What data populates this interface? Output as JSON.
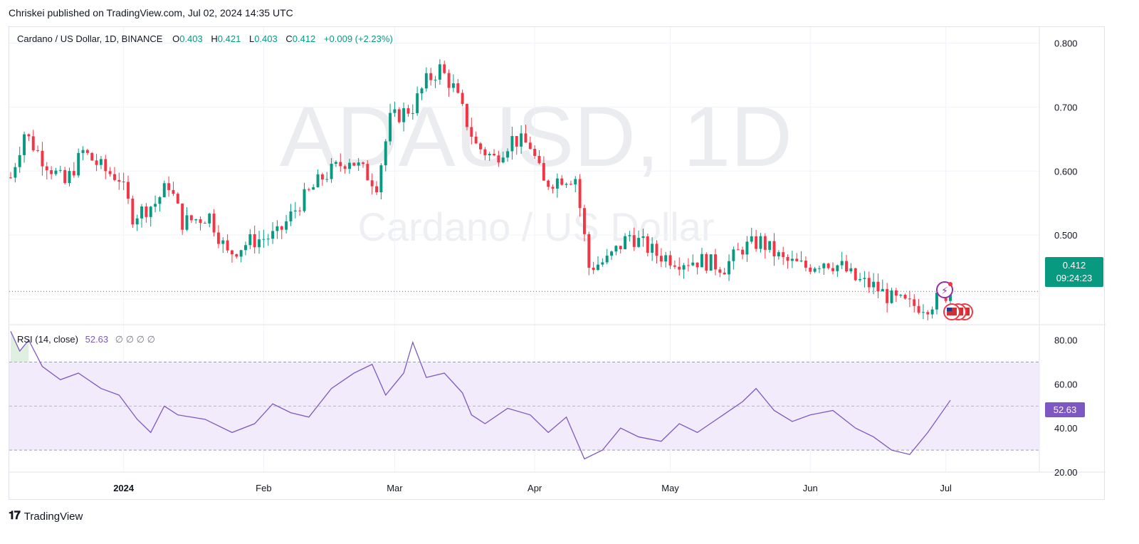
{
  "header": {
    "published": "Chriskei published on TradingView.com, Jul 02, 2024 14:35 UTC"
  },
  "legend": {
    "symbol": "Cardano / US Dollar, 1D, BINANCE",
    "open_label": "O",
    "open": "0.403",
    "high_label": "H",
    "high": "0.421",
    "low_label": "L",
    "low": "0.403",
    "close_label": "C",
    "close": "0.412",
    "change": "+0.009 (+2.23%)"
  },
  "watermark": {
    "ticker": "ADAUSD, 1D",
    "name": "Cardano / US Dollar"
  },
  "price_tag": {
    "price": "0.412",
    "countdown": "09:24:23"
  },
  "rsi": {
    "label": "RSI (14, close)",
    "value": "52.63",
    "placeholders": "∅ ∅ ∅ ∅"
  },
  "brand": {
    "name": "TradingView"
  },
  "colors": {
    "up": "#089981",
    "down": "#f23645",
    "rsi": "#7e57c2",
    "band": "#f1ebfb"
  },
  "chart_data": [
    {
      "type": "candlestick",
      "title": "Cardano / US Dollar, 1D, BINANCE",
      "y_ticks": [
        "0.800",
        "0.700",
        "0.600",
        "0.500"
      ],
      "ylim": [
        0.36,
        0.825
      ],
      "x_ticks": [
        "2024",
        "Feb",
        "Mar",
        "Apr",
        "May",
        "Jun",
        "Jul"
      ],
      "x_range": [
        "2023-12-07",
        "2024-07-02"
      ],
      "close_path": [
        [
          "2023-12-07",
          0.59
        ],
        [
          "2023-12-10",
          0.66
        ],
        [
          "2023-12-14",
          0.62
        ],
        [
          "2023-12-19",
          0.58
        ],
        [
          "2023-12-23",
          0.63
        ],
        [
          "2023-12-28",
          0.6
        ],
        [
          "2023-12-31",
          0.59
        ],
        [
          "2024-01-03",
          0.53
        ],
        [
          "2024-01-08",
          0.55
        ],
        [
          "2024-01-11",
          0.58
        ],
        [
          "2024-01-14",
          0.52
        ],
        [
          "2024-01-20",
          0.53
        ],
        [
          "2024-01-24",
          0.47
        ],
        [
          "2024-01-29",
          0.49
        ],
        [
          "2024-02-04",
          0.5
        ],
        [
          "2024-02-09",
          0.55
        ],
        [
          "2024-02-14",
          0.59
        ],
        [
          "2024-02-20",
          0.62
        ],
        [
          "2024-02-26",
          0.58
        ],
        [
          "2024-02-29",
          0.68
        ],
        [
          "2024-03-05",
          0.7
        ],
        [
          "2024-03-08",
          0.74
        ],
        [
          "2024-03-11",
          0.76
        ],
        [
          "2024-03-14",
          0.73
        ],
        [
          "2024-03-19",
          0.64
        ],
        [
          "2024-03-23",
          0.62
        ],
        [
          "2024-03-27",
          0.65
        ],
        [
          "2024-03-31",
          0.64
        ],
        [
          "2024-04-03",
          0.58
        ],
        [
          "2024-04-07",
          0.59
        ],
        [
          "2024-04-10",
          0.59
        ],
        [
          "2024-04-13",
          0.45
        ],
        [
          "2024-04-17",
          0.46
        ],
        [
          "2024-04-22",
          0.5
        ],
        [
          "2024-04-28",
          0.47
        ],
        [
          "2024-05-03",
          0.46
        ],
        [
          "2024-05-08",
          0.46
        ],
        [
          "2024-05-13",
          0.45
        ],
        [
          "2024-05-17",
          0.48
        ],
        [
          "2024-05-21",
          0.49
        ],
        [
          "2024-05-26",
          0.46
        ],
        [
          "2024-05-31",
          0.45
        ],
        [
          "2024-06-04",
          0.46
        ],
        [
          "2024-06-08",
          0.45
        ],
        [
          "2024-06-11",
          0.43
        ],
        [
          "2024-06-15",
          0.42
        ],
        [
          "2024-06-19",
          0.4
        ],
        [
          "2024-06-23",
          0.39
        ],
        [
          "2024-06-27",
          0.39
        ],
        [
          "2024-07-02",
          0.412
        ]
      ],
      "last_price": 0.412
    },
    {
      "type": "line",
      "title": "RSI (14, close)",
      "y_ticks": [
        "80.00",
        "60.00",
        "40.00",
        "20.00"
      ],
      "ylim": [
        20,
        87
      ],
      "band": [
        30,
        70
      ],
      "midline": 50,
      "series": [
        {
          "values": [
            [
              "2023-12-07",
              84
            ],
            [
              "2023-12-09",
              75
            ],
            [
              "2023-12-11",
              80
            ],
            [
              "2023-12-14",
              68
            ],
            [
              "2023-12-18",
              62
            ],
            [
              "2023-12-22",
              65
            ],
            [
              "2023-12-27",
              58
            ],
            [
              "2023-12-31",
              55
            ],
            [
              "2024-01-04",
              44
            ],
            [
              "2024-01-07",
              38
            ],
            [
              "2024-01-10",
              50
            ],
            [
              "2024-01-13",
              46
            ],
            [
              "2024-01-19",
              44
            ],
            [
              "2024-01-25",
              38
            ],
            [
              "2024-01-30",
              42
            ],
            [
              "2024-02-03",
              51
            ],
            [
              "2024-02-07",
              47
            ],
            [
              "2024-02-11",
              45
            ],
            [
              "2024-02-16",
              58
            ],
            [
              "2024-02-21",
              65
            ],
            [
              "2024-02-25",
              69
            ],
            [
              "2024-02-28",
              55
            ],
            [
              "2024-03-01",
              60
            ],
            [
              "2024-03-03",
              65
            ],
            [
              "2024-03-05",
              79
            ],
            [
              "2024-03-08",
              63
            ],
            [
              "2024-03-12",
              65
            ],
            [
              "2024-03-16",
              56
            ],
            [
              "2024-03-18",
              46
            ],
            [
              "2024-03-21",
              42
            ],
            [
              "2024-03-26",
              49
            ],
            [
              "2024-03-31",
              46
            ],
            [
              "2024-04-04",
              38
            ],
            [
              "2024-04-08",
              45
            ],
            [
              "2024-04-12",
              26
            ],
            [
              "2024-04-16",
              30
            ],
            [
              "2024-04-20",
              40
            ],
            [
              "2024-04-24",
              36
            ],
            [
              "2024-04-29",
              34
            ],
            [
              "2024-05-03",
              42
            ],
            [
              "2024-05-07",
              38
            ],
            [
              "2024-05-12",
              45
            ],
            [
              "2024-05-17",
              52
            ],
            [
              "2024-05-20",
              58
            ],
            [
              "2024-05-24",
              48
            ],
            [
              "2024-05-28",
              43
            ],
            [
              "2024-06-01",
              46
            ],
            [
              "2024-06-06",
              48
            ],
            [
              "2024-06-11",
              40
            ],
            [
              "2024-06-15",
              36
            ],
            [
              "2024-06-19",
              30
            ],
            [
              "2024-06-23",
              28
            ],
            [
              "2024-06-27",
              38
            ],
            [
              "2024-07-02",
              52.63
            ]
          ]
        }
      ]
    }
  ]
}
